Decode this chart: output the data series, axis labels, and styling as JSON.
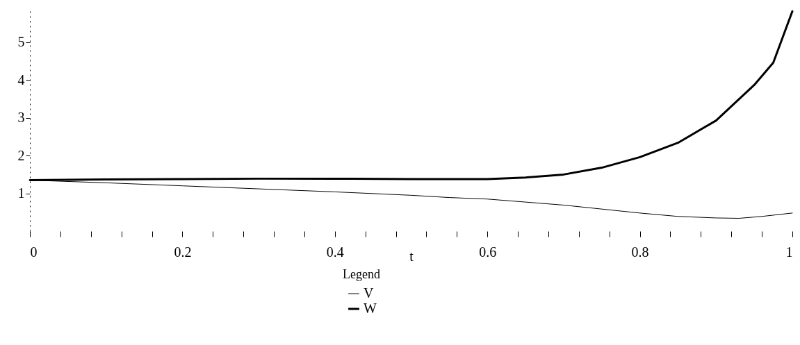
{
  "chart_data": {
    "type": "line",
    "xlabel": "t",
    "legend_title": "Legend",
    "legend": "bottom",
    "xlim": [
      0,
      1
    ],
    "ylim": [
      0,
      5.9
    ],
    "xticks": [
      0,
      {
        "value": 0.04,
        "label": null
      },
      {
        "value": 0.08,
        "label": null
      },
      {
        "value": 0.12,
        "label": null
      },
      {
        "value": 0.16,
        "label": null
      },
      0.2,
      {
        "value": 0.24,
        "label": null
      },
      {
        "value": 0.28,
        "label": null
      },
      {
        "value": 0.32,
        "label": null
      },
      {
        "value": 0.36,
        "label": null
      },
      0.4,
      {
        "value": 0.44,
        "label": null
      },
      {
        "value": 0.48,
        "label": null
      },
      {
        "value": 0.52,
        "label": null
      },
      {
        "value": 0.56,
        "label": null
      },
      0.6,
      {
        "value": 0.64,
        "label": null
      },
      {
        "value": 0.68,
        "label": null
      },
      {
        "value": 0.72,
        "label": null
      },
      {
        "value": 0.76,
        "label": null
      },
      0.8,
      {
        "value": 0.84,
        "label": null
      },
      {
        "value": 0.88,
        "label": null
      },
      {
        "value": 0.92,
        "label": null
      },
      {
        "value": 0.96,
        "label": null
      },
      1
    ],
    "yticks": [
      1,
      2,
      3,
      4,
      5
    ],
    "line_style": "solid",
    "series": [
      {
        "name": "V",
        "color": "#000000",
        "x": [
          0,
          0.1,
          0.2,
          0.3,
          0.4,
          0.5,
          0.55,
          0.6,
          0.7,
          0.8,
          0.85,
          0.9,
          0.93,
          0.96,
          1
        ],
        "values": [
          1.35,
          1.28,
          1.2,
          1.12,
          1.04,
          0.95,
          0.89,
          0.85,
          0.69,
          0.48,
          0.39,
          0.35,
          0.34,
          0.39,
          0.48
        ]
      },
      {
        "name": "W",
        "color": "#000000",
        "x": [
          0,
          0.1,
          0.2,
          0.3,
          0.4,
          0.5,
          0.6,
          0.65,
          0.7,
          0.75,
          0.8,
          0.85,
          0.9,
          0.95,
          0.975,
          1
        ],
        "values": [
          1.35,
          1.37,
          1.38,
          1.39,
          1.39,
          1.38,
          1.38,
          1.42,
          1.5,
          1.68,
          1.96,
          2.34,
          2.93,
          3.87,
          4.46,
          5.82
        ]
      }
    ]
  }
}
